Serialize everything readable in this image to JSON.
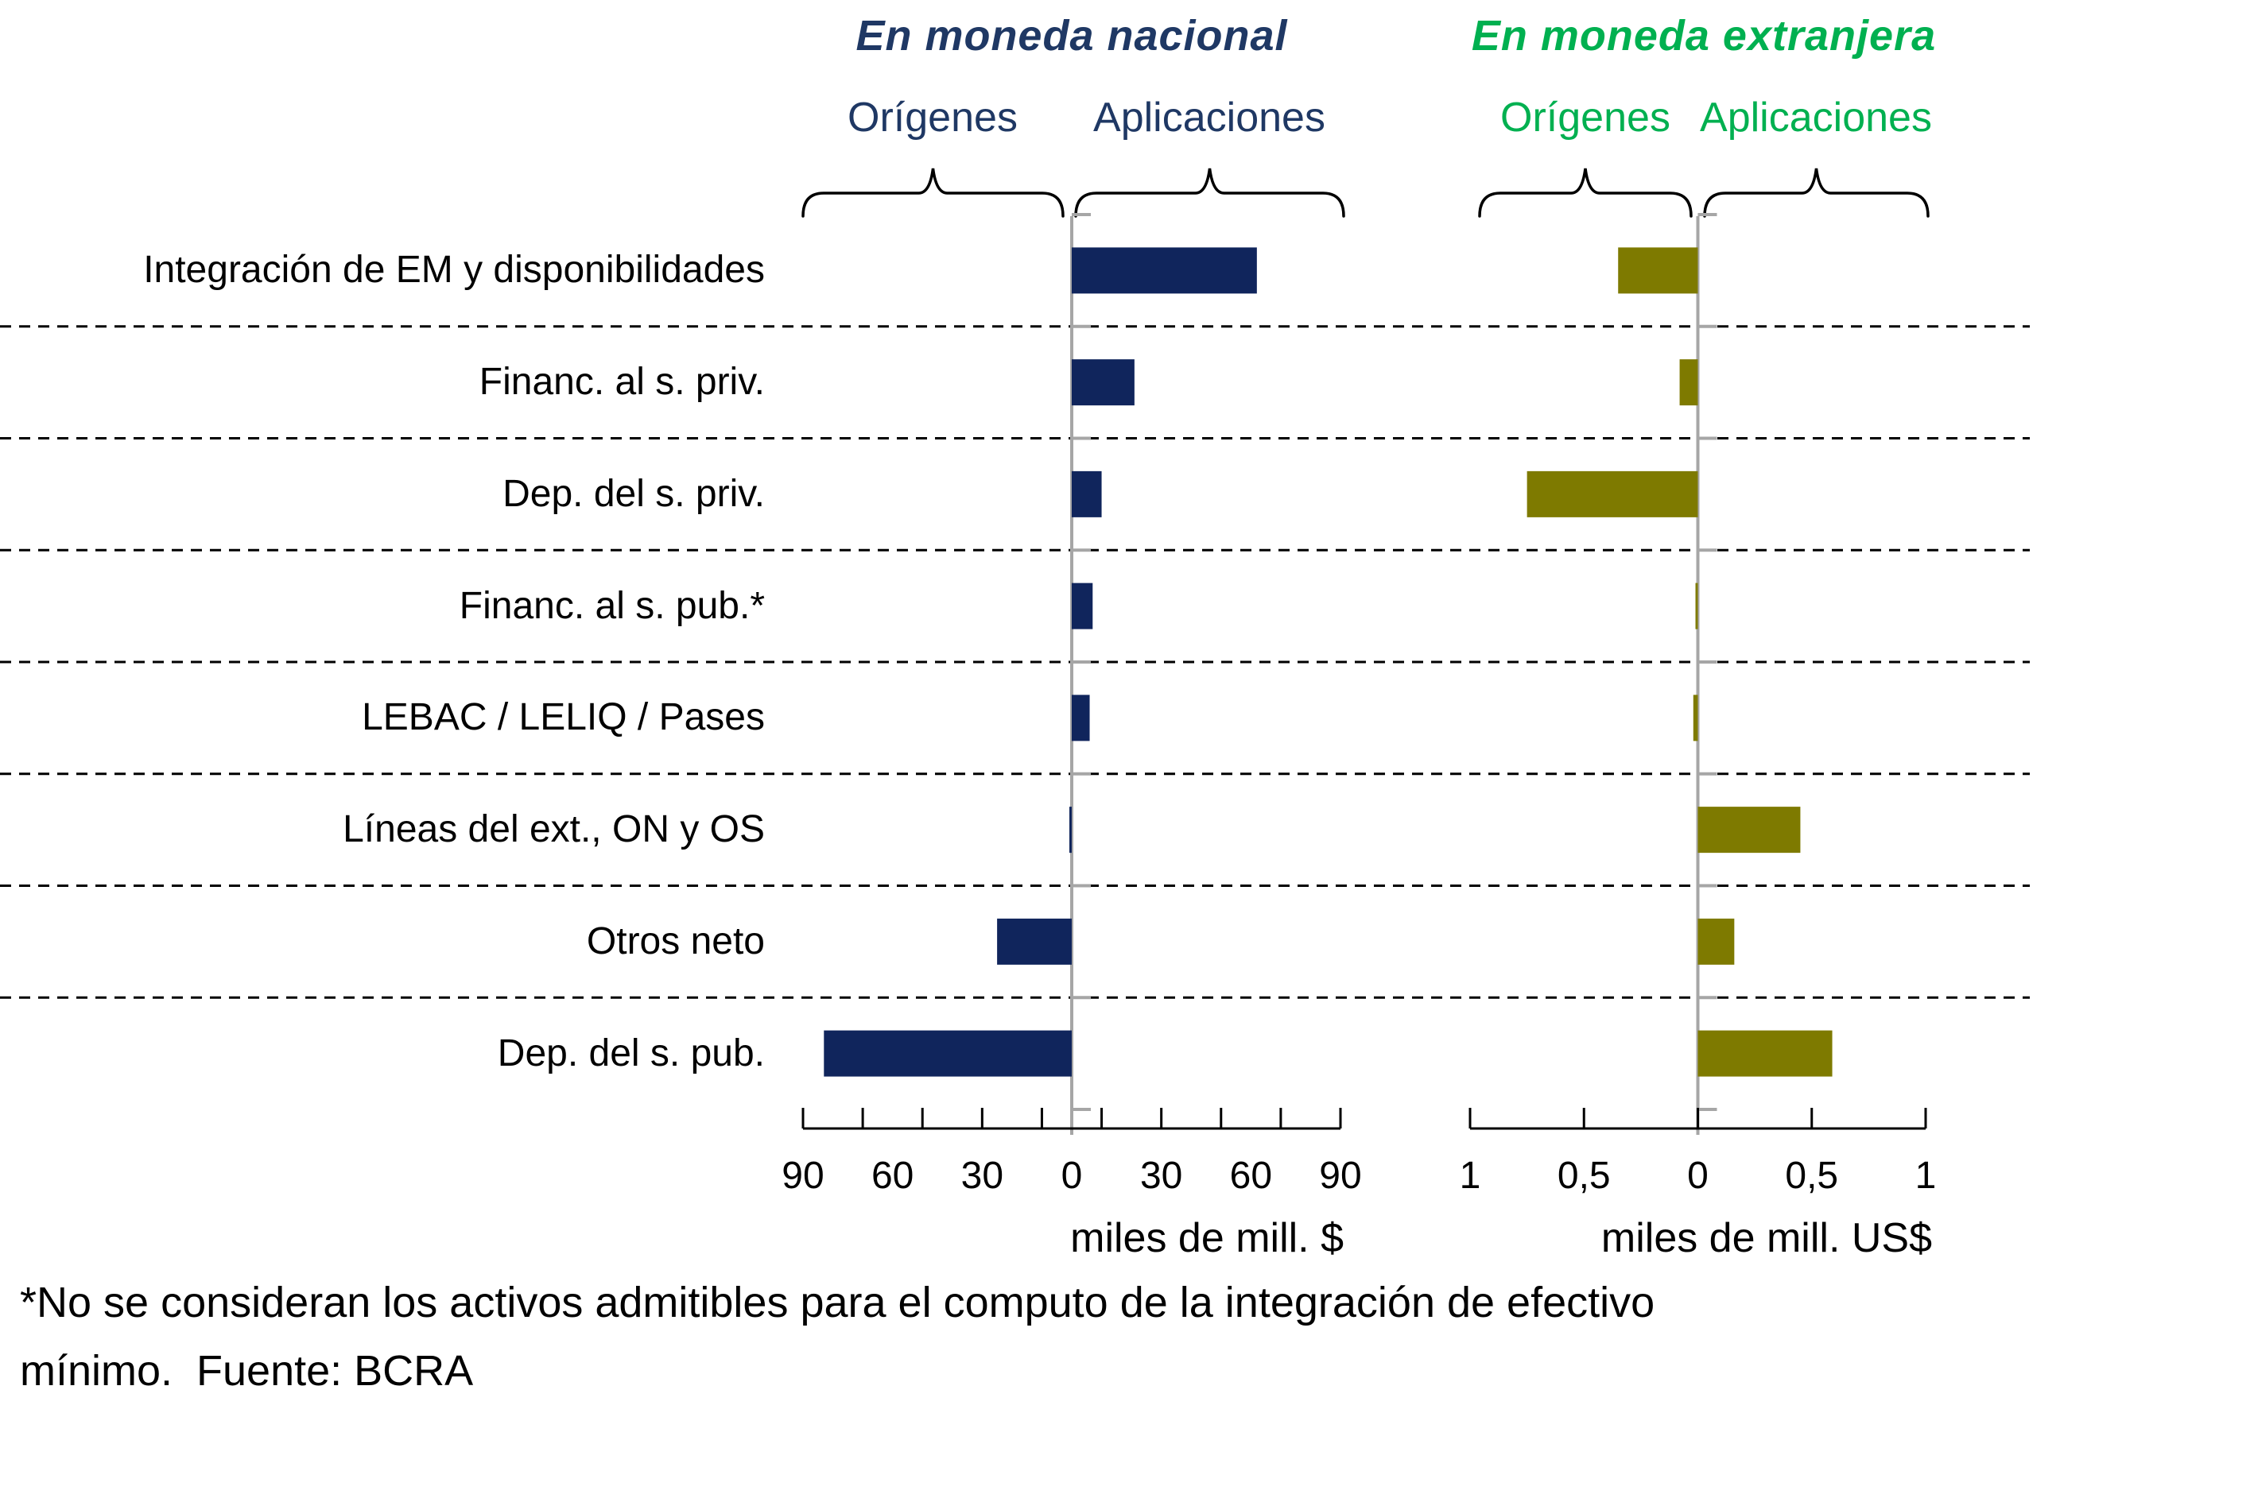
{
  "header": {
    "national": {
      "title": "En moneda nacional",
      "origins": "Orígenes",
      "applications": "Aplicaciones"
    },
    "foreign": {
      "title": "En moneda extranjera",
      "origins": "Orígenes",
      "applications": "Aplicaciones"
    }
  },
  "categories": [
    "Integración de EM y disponibilidades",
    "Financ. al s. priv.",
    "Dep. del s. priv.",
    "Financ. al s. pub.*",
    "LEBAC / LELIQ / Pases",
    "Líneas del ext., ON y OS",
    "Otros neto",
    "Dep. del s. pub."
  ],
  "chart_data": [
    {
      "id": "national",
      "type": "bar",
      "orientation": "horizontal",
      "title": "En moneda nacional",
      "negative_side_label": "Orígenes",
      "positive_side_label": "Aplicaciones",
      "unit_label": "miles de mill. $",
      "bar_color": "#10255c",
      "axis": {
        "min": -90,
        "max": 90,
        "tick_interval": 20,
        "label_values": [
          -90,
          -60,
          -30,
          0,
          30,
          60,
          90
        ],
        "label_texts": [
          "90",
          "60",
          "30",
          "0",
          "30",
          "60",
          "90"
        ]
      },
      "categories": [
        "Integración de EM y disponibilidades",
        "Financ. al s. priv.",
        "Dep. del s. priv.",
        "Financ. al s. pub.*",
        "LEBAC / LELIQ / Pases",
        "Líneas del ext., ON y OS",
        "Otros neto",
        "Dep. del s. pub."
      ],
      "values": [
        62,
        21,
        10,
        7,
        6,
        -0.5,
        -25,
        -83
      ]
    },
    {
      "id": "foreign",
      "type": "bar",
      "orientation": "horizontal",
      "title": "En moneda extranjera",
      "negative_side_label": "Orígenes",
      "positive_side_label": "Aplicaciones",
      "unit_label": "miles de mill. US$",
      "bar_color": "#7e7a00",
      "axis": {
        "min": -1,
        "max": 1,
        "tick_interval": 0.5,
        "label_values": [
          -1,
          -0.5,
          0,
          0.5,
          1
        ],
        "label_texts": [
          "1",
          "0,5",
          "0",
          "0,5",
          "1"
        ]
      },
      "categories": [
        "Integración de EM y disponibilidades",
        "Financ. al s. priv.",
        "Dep. del s. priv.",
        "Financ. al s. pub.*",
        "LEBAC / LELIQ / Pases",
        "Líneas del ext., ON y OS",
        "Otros neto",
        "Dep. del s. pub."
      ],
      "values": [
        -0.35,
        -0.08,
        -0.75,
        -0.01,
        -0.02,
        0.45,
        0.16,
        0.59
      ]
    }
  ],
  "footnote": {
    "line1": "*No se consideran los activos admitibles para el computo de la integración de efectivo",
    "line2": "mínimo.  Fuente: BCRA"
  },
  "colors": {
    "national_text": "#1f3864",
    "foreign_text": "#00b050",
    "national_bar": "#10255c",
    "foreign_bar": "#7e7a00",
    "axis_gray": "#a6a6a6",
    "line_black": "#000000",
    "background": "#ffffff"
  }
}
